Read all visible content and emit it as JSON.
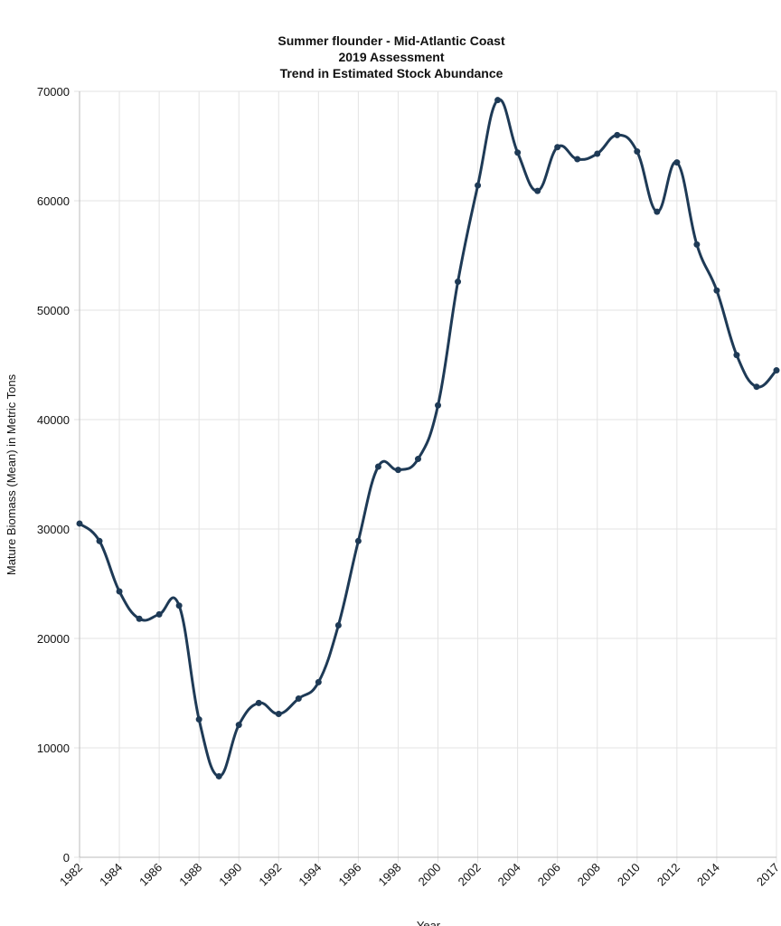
{
  "chart_data": {
    "type": "line",
    "title": [
      "Summer flounder - Mid-Atlantic Coast",
      "2019 Assessment",
      "Trend in Estimated Stock Abundance"
    ],
    "x_label": "Year",
    "y_label": "Mature Biomass (Mean) in Metric Tons",
    "x": [
      1982,
      1983,
      1984,
      1985,
      1986,
      1987,
      1988,
      1989,
      1990,
      1991,
      1992,
      1993,
      1994,
      1995,
      1996,
      1997,
      1998,
      1999,
      2000,
      2001,
      2002,
      2003,
      2004,
      2005,
      2006,
      2007,
      2008,
      2009,
      2010,
      2011,
      2012,
      2013,
      2014,
      2015,
      2016,
      2017
    ],
    "series": [
      {
        "name": "Mature Biomass",
        "color": "#1e3a56",
        "values": [
          30500,
          28900,
          24300,
          21800,
          22200,
          23000,
          12600,
          7400,
          12100,
          14100,
          13100,
          14500,
          16000,
          21200,
          28900,
          35700,
          35400,
          36400,
          41300,
          52600,
          61400,
          69200,
          64400,
          60900,
          64900,
          63800,
          64300,
          66000,
          64500,
          59000,
          63500,
          56000,
          51800,
          45900,
          43000,
          44500
        ]
      }
    ],
    "xlim": [
      1982,
      2017
    ],
    "xticks": [
      1982,
      1984,
      1986,
      1988,
      1990,
      1992,
      1994,
      1996,
      1998,
      2000,
      2002,
      2004,
      2006,
      2008,
      2010,
      2012,
      2014,
      2017
    ],
    "ylim": [
      0,
      70000
    ],
    "yticks": [
      0,
      10000,
      20000,
      30000,
      40000,
      50000,
      60000,
      70000
    ],
    "grid": true
  }
}
